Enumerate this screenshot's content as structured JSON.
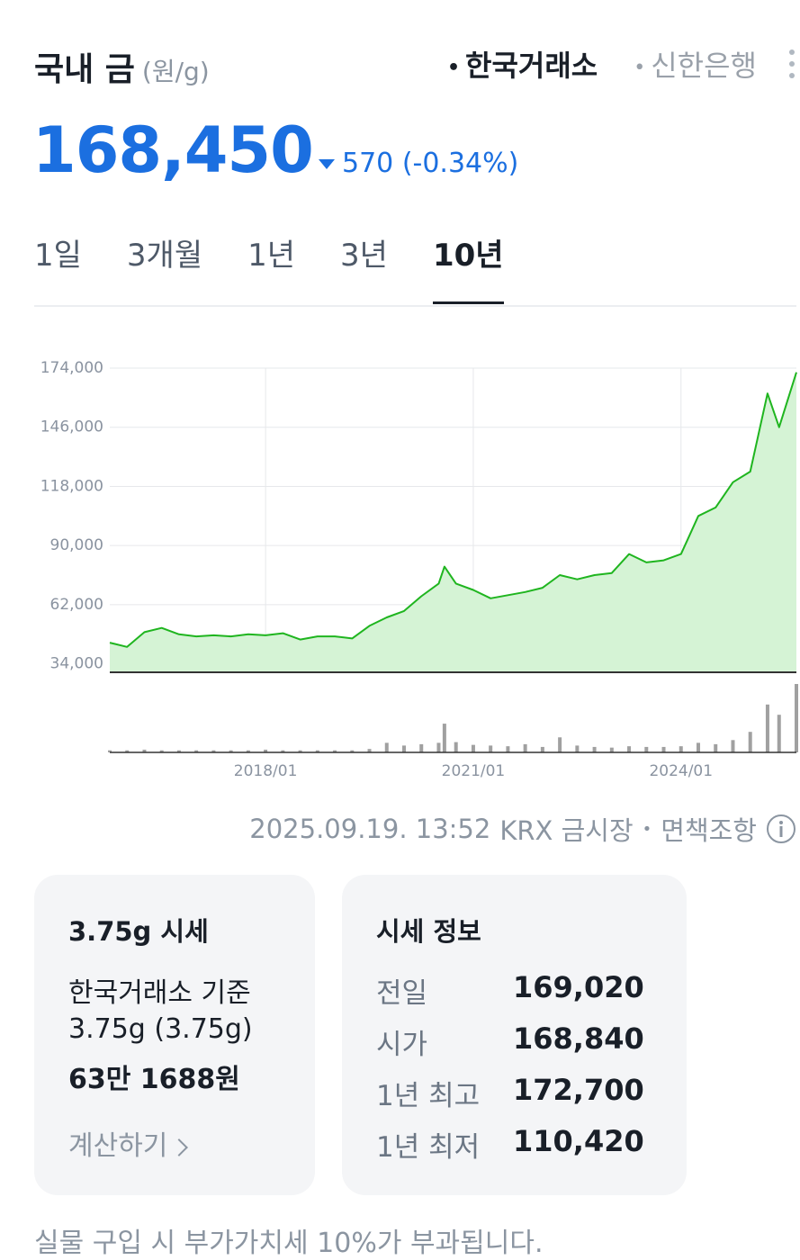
{
  "header": {
    "title": "국내 금",
    "unit": "(원/g)",
    "sources": [
      "한국거래소",
      "신한은행"
    ],
    "active_source": 0
  },
  "price": {
    "value": "168,450",
    "change": "570",
    "change_pct": "(-0.34%)"
  },
  "tabs": {
    "items": [
      "1일",
      "3개월",
      "1년",
      "3년",
      "10년"
    ],
    "active": 4
  },
  "chart_data": [
    {
      "type": "line",
      "x": [
        "2015/10",
        "2016/01",
        "2016/04",
        "2016/07",
        "2016/10",
        "2017/01",
        "2017/04",
        "2017/07",
        "2017/10",
        "2018/01",
        "2018/04",
        "2018/07",
        "2018/10",
        "2019/01",
        "2019/04",
        "2019/07",
        "2019/10",
        "2020/01",
        "2020/04",
        "2020/07",
        "2020/08",
        "2020/10",
        "2021/01",
        "2021/04",
        "2021/07",
        "2021/10",
        "2022/01",
        "2022/04",
        "2022/07",
        "2022/10",
        "2023/01",
        "2023/04",
        "2023/07",
        "2023/10",
        "2024/01",
        "2024/04",
        "2024/07",
        "2024/10",
        "2025/01",
        "2025/04",
        "2025/06",
        "2025/09"
      ],
      "series": [
        {
          "color": "#1fb51f",
          "fill": "#d5f3d5",
          "values": [
            44000,
            42000,
            49000,
            51000,
            48000,
            47000,
            47500,
            47000,
            48000,
            47500,
            48500,
            45500,
            47000,
            47000,
            46000,
            52000,
            56000,
            59000,
            66000,
            72000,
            80000,
            72000,
            69000,
            65000,
            66500,
            68000,
            70000,
            76000,
            74000,
            76000,
            77000,
            86000,
            82000,
            83000,
            86000,
            104000,
            108000,
            120000,
            125000,
            162000,
            146000,
            172000
          ]
        }
      ],
      "xlim": [
        "2015/10",
        "2025/09"
      ],
      "xticks": [
        "2018/01",
        "2021/01",
        "2024/01"
      ],
      "ylim": [
        30000,
        174000
      ],
      "yticks": [
        {
          "value": 34000,
          "label": "34,000"
        },
        {
          "value": 62000,
          "label": "62,000"
        },
        {
          "value": 90000,
          "label": "90,000"
        },
        {
          "value": 118000,
          "label": "118,000"
        },
        {
          "value": 146000,
          "label": "146,000"
        },
        {
          "value": 174000,
          "label": "174,000"
        }
      ],
      "grid": true
    },
    {
      "type": "bar",
      "x": [
        "2015/10",
        "2016/01",
        "2016/04",
        "2016/07",
        "2016/10",
        "2017/01",
        "2017/04",
        "2017/07",
        "2017/10",
        "2018/01",
        "2018/04",
        "2018/07",
        "2018/10",
        "2019/01",
        "2019/04",
        "2019/07",
        "2019/10",
        "2020/01",
        "2020/04",
        "2020/07",
        "2020/08",
        "2020/10",
        "2021/01",
        "2021/04",
        "2021/07",
        "2021/10",
        "2022/01",
        "2022/04",
        "2022/07",
        "2022/10",
        "2023/01",
        "2023/04",
        "2023/07",
        "2023/10",
        "2024/01",
        "2024/04",
        "2024/07",
        "2024/10",
        "2025/01",
        "2025/04",
        "2025/06",
        "2025/09"
      ],
      "values": [
        3,
        3,
        4,
        3,
        3,
        3,
        3,
        3,
        3,
        4,
        3,
        3,
        3,
        3,
        3,
        5,
        14,
        10,
        12,
        14,
        42,
        15,
        11,
        10,
        9,
        12,
        8,
        22,
        10,
        8,
        7,
        9,
        8,
        8,
        9,
        14,
        12,
        18,
        30,
        70,
        55,
        100
      ],
      "color": "#a0a0a0",
      "ylim": [
        0,
        100
      ]
    }
  ],
  "footer": {
    "timestamp": "2025.09.19. 13:52",
    "market": "KRX 금시장",
    "disclaimer": "면책조항"
  },
  "cards": [
    {
      "title": "3.75g 시세",
      "lines": [
        "한국거래소 기준",
        "3.75g (3.75g)"
      ],
      "amount": "63만 1688원",
      "action": "계산하기"
    },
    {
      "title": "시세 정보",
      "rows": [
        [
          "전일",
          "169,020"
        ],
        [
          "시가",
          "168,840"
        ],
        [
          "1년 최고",
          "172,700"
        ],
        [
          "1년 최저",
          "110,420"
        ]
      ]
    }
  ],
  "notice": "실물 구입 시 부가가치세 10%가 부과됩니다."
}
